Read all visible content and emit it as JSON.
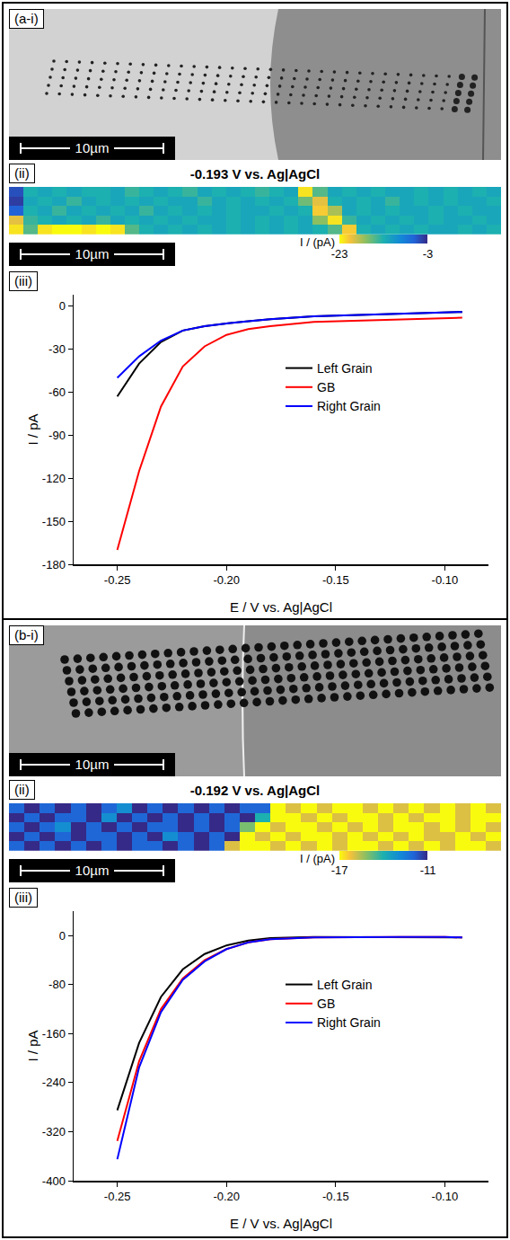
{
  "images": [
    {
      "label": "(a-i)",
      "scale_bar": "10µm"
    },
    {
      "label": "(b-i)",
      "scale_bar": "10µm"
    }
  ],
  "chart_data": [
    {
      "type": "heatmap",
      "label": "(ii)",
      "title": "-0.193 V vs. Ag|AgCl",
      "scale_bar": "10µm",
      "z": [
        [
          -5,
          -13,
          -12,
          -13,
          -12,
          -13,
          -13,
          -12,
          -14,
          -13,
          -12,
          -13,
          -14,
          -12,
          -13,
          -12,
          -13,
          -14,
          -13,
          -12,
          -22,
          -15,
          -12,
          -13,
          -12,
          -13,
          -12,
          -12,
          -13,
          -12,
          -13,
          -12,
          -13,
          -12
        ],
        [
          -4,
          -12,
          -13,
          -12,
          -14,
          -12,
          -13,
          -12,
          -13,
          -12,
          -13,
          -12,
          -12,
          -14,
          -12,
          -13,
          -12,
          -13,
          -12,
          -13,
          -16,
          -20,
          -13,
          -12,
          -13,
          -12,
          -14,
          -12,
          -13,
          -12,
          -13,
          -12,
          -12,
          -13
        ],
        [
          -6,
          -13,
          -12,
          -14,
          -12,
          -13,
          -12,
          -13,
          -12,
          -14,
          -12,
          -13,
          -12,
          -13,
          -12,
          -13,
          -12,
          -12,
          -13,
          -12,
          -13,
          -21,
          -18,
          -12,
          -13,
          -12,
          -13,
          -12,
          -12,
          -13,
          -12,
          -13,
          -12,
          -12
        ],
        [
          -20,
          -14,
          -13,
          -12,
          -13,
          -12,
          -14,
          -12,
          -13,
          -12,
          -13,
          -12,
          -13,
          -12,
          -12,
          -13,
          -12,
          -13,
          -12,
          -13,
          -12,
          -17,
          -22,
          -14,
          -12,
          -13,
          -12,
          -13,
          -12,
          -13,
          -12,
          -12,
          -13,
          -12
        ],
        [
          -22,
          -15,
          -22,
          -23,
          -23,
          -22,
          -23,
          -22,
          -15,
          -13,
          -12,
          -13,
          -12,
          -13,
          -12,
          -13,
          -12,
          -13,
          -12,
          -13,
          -12,
          -13,
          -15,
          -21,
          -13,
          -12,
          -13,
          -12,
          -13,
          -12,
          -12,
          -13,
          -12,
          -13
        ]
      ],
      "colorbar": {
        "title": "I / (pA)",
        "range": [
          -23,
          -3
        ],
        "ticks": [
          -23,
          -3
        ]
      }
    },
    {
      "type": "line",
      "label": "(iii)",
      "xlabel": "E / V vs. Ag|AgCl",
      "ylabel": "I / pA",
      "x": [
        -0.25,
        -0.24,
        -0.23,
        -0.22,
        -0.21,
        -0.2,
        -0.19,
        -0.18,
        -0.16,
        -0.14,
        -0.12,
        -0.1,
        -0.092
      ],
      "series": [
        {
          "name": "Left Grain",
          "color": "#000000",
          "values": [
            -63,
            -40,
            -25,
            -17,
            -14,
            -12,
            -10.5,
            -9,
            -7,
            -6,
            -5,
            -4,
            -4
          ]
        },
        {
          "name": "GB",
          "color": "#ff0000",
          "values": [
            -170,
            -115,
            -70,
            -42,
            -28,
            -20,
            -16,
            -14,
            -11,
            -10,
            -9,
            -8,
            -8
          ]
        },
        {
          "name": "Right Grain",
          "color": "#0000ff",
          "values": [
            -50,
            -35,
            -24,
            -17,
            -14,
            -12,
            -10.5,
            -9,
            -7,
            -6,
            -5,
            -4,
            -4
          ]
        }
      ],
      "xlim": [
        -0.27,
        -0.08
      ],
      "xticks": [
        -0.25,
        {
          "value": -0.2,
          "label": "-0.20"
        },
        -0.15,
        {
          "value": -0.1,
          "label": "-0.10"
        }
      ],
      "ylim": [
        -180,
        8
      ],
      "yticks": [
        0,
        -30,
        -60,
        -90,
        -120,
        -150,
        -180
      ],
      "grid": false,
      "legend": "right"
    },
    {
      "type": "heatmap",
      "label": "(ii)",
      "title": "-0.192 V vs. Ag|AgCl",
      "scale_bar": "10µm",
      "z": [
        [
          -12,
          -11,
          -12,
          -11,
          -12,
          -11,
          -12,
          -13,
          -11,
          -12,
          -11,
          -12,
          -11,
          -12,
          -11,
          -12,
          -12,
          -17,
          -16,
          -17,
          -16,
          -17,
          -17,
          -16,
          -17,
          -16,
          -17,
          -16,
          -17,
          -16,
          -17,
          -16
        ],
        [
          -11,
          -12,
          -11,
          -12,
          -12,
          -11,
          -13,
          -11,
          -12,
          -11,
          -12,
          -11,
          -12,
          -11,
          -12,
          -11,
          -14,
          -17,
          -17,
          -16,
          -17,
          -16,
          -17,
          -17,
          -16,
          -17,
          -16,
          -17,
          -17,
          -16,
          -17,
          -17
        ],
        [
          -12,
          -11,
          -12,
          -13,
          -11,
          -12,
          -11,
          -12,
          -11,
          -12,
          -12,
          -11,
          -12,
          -11,
          -12,
          -15,
          -17,
          -16,
          -17,
          -17,
          -16,
          -17,
          -16,
          -17,
          -16,
          -17,
          -17,
          -16,
          -17,
          -16,
          -17,
          -16
        ],
        [
          -11,
          -12,
          -11,
          -12,
          -11,
          -12,
          -12,
          -11,
          -12,
          -11,
          -13,
          -12,
          -11,
          -12,
          -11,
          -17,
          -16,
          -17,
          -16,
          -17,
          -17,
          -16,
          -17,
          -16,
          -17,
          -16,
          -17,
          -16,
          -16,
          -17,
          -16,
          -17
        ],
        [
          -12,
          -11,
          -12,
          -11,
          -12,
          -11,
          -12,
          -11,
          -12,
          -12,
          -11,
          -12,
          -11,
          -12,
          -16,
          -17,
          -17,
          -16,
          -17,
          -16,
          -17,
          -16,
          -17,
          -17,
          -16,
          -17,
          -16,
          -17,
          -16,
          -17,
          -17,
          -16
        ]
      ],
      "colorbar": {
        "title": "I / (pA)",
        "range": [
          -17,
          -11
        ],
        "ticks": [
          -17,
          -11
        ]
      }
    },
    {
      "type": "line",
      "label": "(iii)",
      "xlabel": "E / V vs. Ag|AgCl",
      "ylabel": "I / pA",
      "x": [
        -0.25,
        -0.24,
        -0.23,
        -0.22,
        -0.21,
        -0.2,
        -0.19,
        -0.18,
        -0.16,
        -0.14,
        -0.12,
        -0.1,
        -0.092
      ],
      "series": [
        {
          "name": "Left Grain",
          "color": "#000000",
          "values": [
            -285,
            -175,
            -100,
            -55,
            -30,
            -16,
            -8,
            -4,
            -2,
            -2,
            -2,
            -3,
            -3
          ]
        },
        {
          "name": "GB",
          "color": "#ff0000",
          "values": [
            -335,
            -205,
            -120,
            -70,
            -40,
            -22,
            -11,
            -6,
            -3,
            -2,
            -2,
            -2,
            -3
          ]
        },
        {
          "name": "Right Grain",
          "color": "#0000ff",
          "values": [
            -365,
            -215,
            -125,
            -72,
            -42,
            -22,
            -11,
            -6,
            -3,
            -2,
            -2,
            -2,
            -3
          ]
        }
      ],
      "xlim": [
        -0.27,
        -0.08
      ],
      "xticks": [
        -0.25,
        {
          "value": -0.2,
          "label": "-0.20"
        },
        -0.15,
        {
          "value": -0.1,
          "label": "-0.10"
        }
      ],
      "ylim": [
        -400,
        40
      ],
      "yticks": [
        0,
        -80,
        -160,
        -240,
        -320,
        -400
      ],
      "grid": false,
      "legend": "right"
    }
  ]
}
